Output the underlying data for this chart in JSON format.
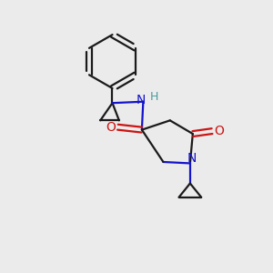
{
  "background_color": "#ebebeb",
  "bond_color": "#1a1a1a",
  "N_color": "#1414cc",
  "O_color": "#cc1414",
  "H_color": "#4a9a9a",
  "figsize": [
    3.0,
    3.0
  ],
  "dpi": 100,
  "xlim": [
    0,
    10
  ],
  "ylim": [
    0,
    10
  ]
}
